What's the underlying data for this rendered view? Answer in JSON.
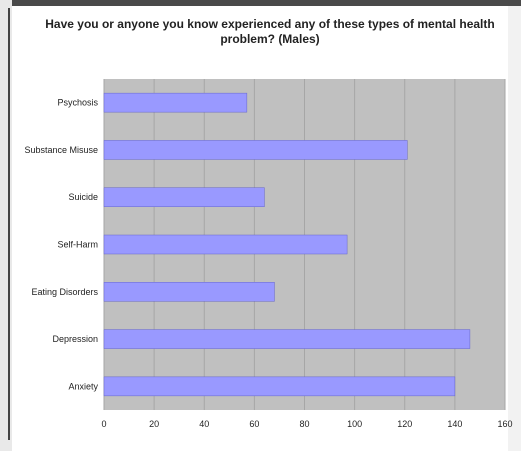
{
  "colors": {
    "plot_background": "#c0c0c0",
    "bar_fill": "#9999ff",
    "bar_stroke": "#6666cc",
    "gridline": "#a6a6a6"
  },
  "chart_data": {
    "type": "bar",
    "orientation": "horizontal",
    "title": "Have you or anyone you know experienced any of these types of mental health problem? (Males)",
    "xlabel": "",
    "ylabel": "",
    "categories": [
      "Psychosis",
      "Substance Misuse",
      "Suicide",
      "Self-Harm",
      "Eating Disorders",
      "Depression",
      "Anxiety"
    ],
    "values": [
      57,
      121,
      64,
      97,
      68,
      146,
      140
    ],
    "xlim": [
      0,
      160
    ],
    "x_ticks": [
      "0",
      "20",
      "40",
      "60",
      "80",
      "100",
      "120",
      "140",
      "160"
    ],
    "grid": true,
    "legend": "none"
  }
}
